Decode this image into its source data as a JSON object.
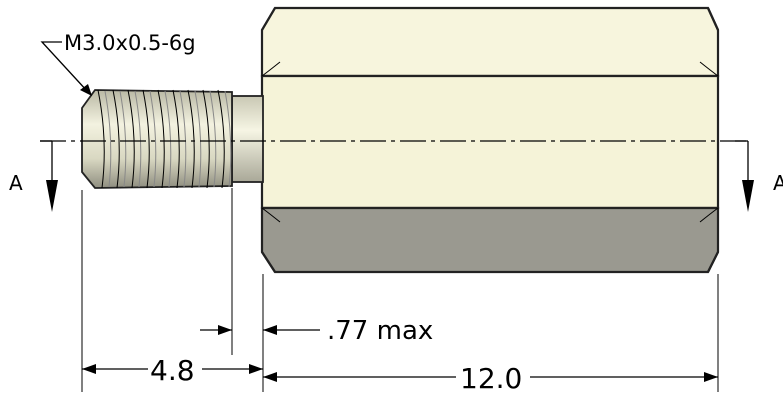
{
  "callouts": {
    "thread_spec": "M3.0x0.5-6g",
    "section_label_left": "A",
    "section_label_right": "A"
  },
  "dimensions": {
    "thread_length": "4.8",
    "relief_width": ".77 max",
    "body_length": "12.0"
  },
  "colors": {
    "body_fill": "#f7f5dd",
    "body_shadow": "#9a9990",
    "thread_fill": "#ecebd6",
    "line": "#000000"
  }
}
